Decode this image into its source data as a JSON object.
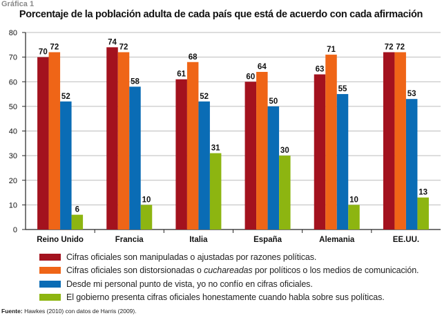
{
  "kicker": "Gráfica 1",
  "source_label": "Fuente:",
  "source_text": " Hawkes (2010) con datos de Harris (2009).",
  "chart_data": {
    "type": "bar",
    "title": "Porcentaje de la población adulta de cada país que está de acuerdo con cada afirmación",
    "categories": [
      "Reino Unido",
      "Francia",
      "Italia",
      "España",
      "Alemania",
      "EE.UU."
    ],
    "ylim": [
      0,
      80
    ],
    "yticks": [
      0,
      10,
      20,
      30,
      40,
      50,
      60,
      70,
      80
    ],
    "grid": true,
    "legend_position": "bottom",
    "series": [
      {
        "name": "Cifras oficiales son manipuladas o ajustadas por razones políticas.",
        "color": "#a3121e",
        "values": [
          70,
          74,
          61,
          60,
          63,
          72
        ]
      },
      {
        "name_parts": [
          "Cifras oficiales son distorsionadas o ",
          "cuchareadas",
          " por políticos o los medios de comunicación."
        ],
        "color": "#ef6517",
        "values": [
          72,
          72,
          68,
          64,
          71,
          72
        ]
      },
      {
        "name": "Desde mi personal punto de vista, yo no confío en cifras oficiales.",
        "color": "#0a6cb5",
        "values": [
          52,
          58,
          52,
          50,
          55,
          53
        ]
      },
      {
        "name": "El gobierno presenta cifras oficiales honestamente cuando habla sobre sus políticas.",
        "color": "#8db511",
        "values": [
          6,
          10,
          31,
          30,
          10,
          13
        ]
      }
    ]
  }
}
